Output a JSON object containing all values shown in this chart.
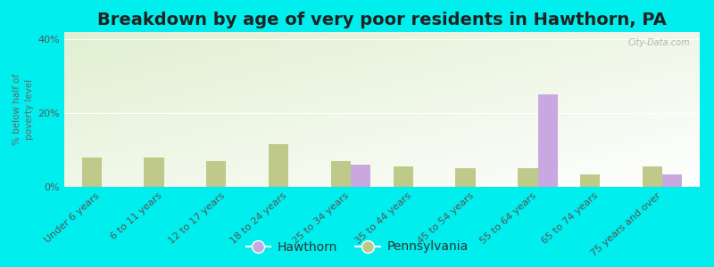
{
  "title": "Breakdown by age of very poor residents in Hawthorn, PA",
  "ylabel": "% below half of\npoverty level",
  "categories": [
    "Under 6 years",
    "6 to 11 years",
    "12 to 17 years",
    "18 to 24 years",
    "25 to 34 years",
    "35 to 44 years",
    "45 to 54 years",
    "55 to 64 years",
    "65 to 74 years",
    "75 years and over"
  ],
  "hawthorn_values": [
    0,
    0,
    0,
    0,
    6.0,
    0,
    0,
    25.0,
    0,
    3.5
  ],
  "pennsylvania_values": [
    8.0,
    8.0,
    7.0,
    11.5,
    7.0,
    5.5,
    5.0,
    5.0,
    3.5,
    5.5
  ],
  "hawthorn_color": "#c9a8e0",
  "pennsylvania_color": "#bec98a",
  "background_color": "#00eeee",
  "ylim": [
    0,
    42
  ],
  "yticks": [
    0,
    20,
    40
  ],
  "ytick_labels": [
    "0%",
    "20%",
    "40%"
  ],
  "title_fontsize": 14,
  "axis_label_fontsize": 7.5,
  "tick_fontsize": 8,
  "legend_fontsize": 10,
  "bar_width": 0.32,
  "watermark": "City-Data.com"
}
